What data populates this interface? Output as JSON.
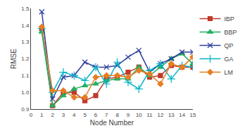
{
  "chart_data": {
    "type": "line",
    "x": [
      1,
      2,
      3,
      4,
      5,
      6,
      7,
      8,
      9,
      10,
      11,
      12,
      13,
      14,
      15
    ],
    "series": [
      {
        "name": "IBP",
        "color": "#c0392b",
        "marker": "square",
        "values": [
          1.38,
          0.92,
          1.0,
          1.0,
          0.95,
          0.98,
          1.08,
          1.09,
          1.12,
          1.15,
          1.09,
          1.1,
          1.16,
          1.15,
          1.15
        ]
      },
      {
        "name": "BBP",
        "color": "#27ae60",
        "marker": "triangle",
        "values": [
          1.36,
          0.92,
          0.98,
          1.02,
          1.04,
          1.05,
          1.07,
          1.08,
          1.08,
          1.15,
          1.1,
          1.15,
          1.2,
          1.23,
          1.17
        ]
      },
      {
        "name": "QP",
        "color": "#2c3e9e",
        "marker": "x",
        "values": [
          1.48,
          0.96,
          1.09,
          1.1,
          1.18,
          1.15,
          1.15,
          1.16,
          1.21,
          1.25,
          1.12,
          1.17,
          1.2,
          1.24,
          1.24
        ]
      },
      {
        "name": "GA",
        "color": "#00b5c8",
        "marker": "plus",
        "values": [
          1.38,
          1.0,
          1.12,
          1.1,
          1.07,
          1.15,
          1.05,
          1.18,
          1.06,
          1.02,
          1.13,
          1.17,
          1.08,
          1.16,
          1.15
        ]
      },
      {
        "name": "LM",
        "color": "#e67e22",
        "marker": "diamond",
        "values": [
          1.39,
          1.01,
          1.01,
          0.97,
          0.97,
          1.09,
          1.1,
          1.1,
          1.09,
          1.13,
          1.11,
          1.05,
          1.17,
          1.15,
          1.21
        ]
      }
    ],
    "xlabel": "Node Number",
    "ylabel": "RMSE",
    "xlim": [
      0,
      15
    ],
    "ylim": [
      0.9,
      1.5
    ],
    "xticks": [
      0,
      1,
      2,
      3,
      4,
      5,
      6,
      7,
      8,
      9,
      10,
      11,
      12,
      13,
      14,
      15
    ],
    "yticks": [
      0.9,
      {
        "value": 1,
        "label": "1.0"
      },
      1.1,
      1.2,
      1.3,
      1.4,
      1.5
    ],
    "grid": false,
    "legend": "upper right"
  }
}
